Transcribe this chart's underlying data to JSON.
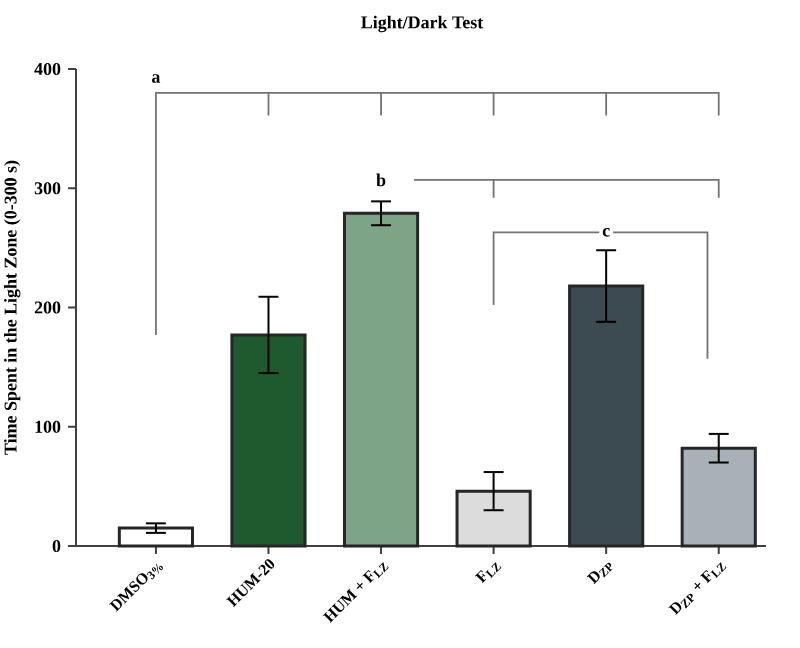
{
  "chart_data": {
    "type": "bar",
    "title": "Light/Dark Test",
    "ylabel": "Time Spent in the Light Zone (0-300 s)",
    "categories": [
      "DMSO$_{3%}$",
      "HUM-20",
      "HUM + F$_{LZ}$",
      "F$_{LZ}$",
      "D$_{ZP}$",
      "D$_{ZP}$ + F$_{LZ}$"
    ],
    "values": [
      15,
      177,
      279,
      46,
      218,
      82
    ],
    "errors": [
      4,
      32,
      10,
      16,
      30,
      12
    ],
    "colors": [
      "#ffffff",
      "#1e5a2e",
      "#7da487",
      "#dcdcdc",
      "#3c4a52",
      "#a8b0b8"
    ],
    "ylim": [
      0,
      400
    ],
    "yticks": [
      0,
      100,
      200,
      300,
      400
    ],
    "annotations": [
      "a",
      "b",
      "c"
    ]
  }
}
